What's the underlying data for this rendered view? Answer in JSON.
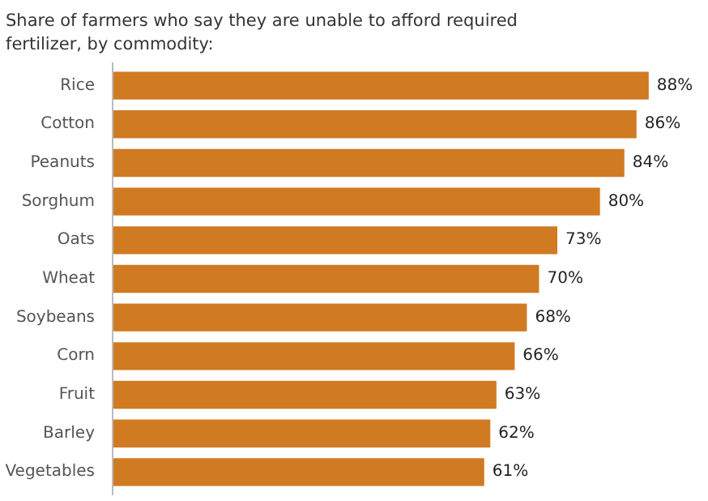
{
  "chart_data": {
    "type": "bar",
    "orientation": "horizontal",
    "title": "Share of farmers who say they are unable to afford required fertilizer, by commodity:",
    "categories": [
      "Rice",
      "Cotton",
      "Peanuts",
      "Sorghum",
      "Oats",
      "Wheat",
      "Soybeans",
      "Corn",
      "Fruit",
      "Barley",
      "Vegetables"
    ],
    "values": [
      88,
      86,
      84,
      80,
      73,
      70,
      68,
      66,
      63,
      62,
      61
    ],
    "value_labels": [
      "88%",
      "86%",
      "84%",
      "80%",
      "73%",
      "70%",
      "68%",
      "66%",
      "63%",
      "62%",
      "61%"
    ],
    "color": "#d07a22",
    "grid": false,
    "tick_labels": "y"
  }
}
